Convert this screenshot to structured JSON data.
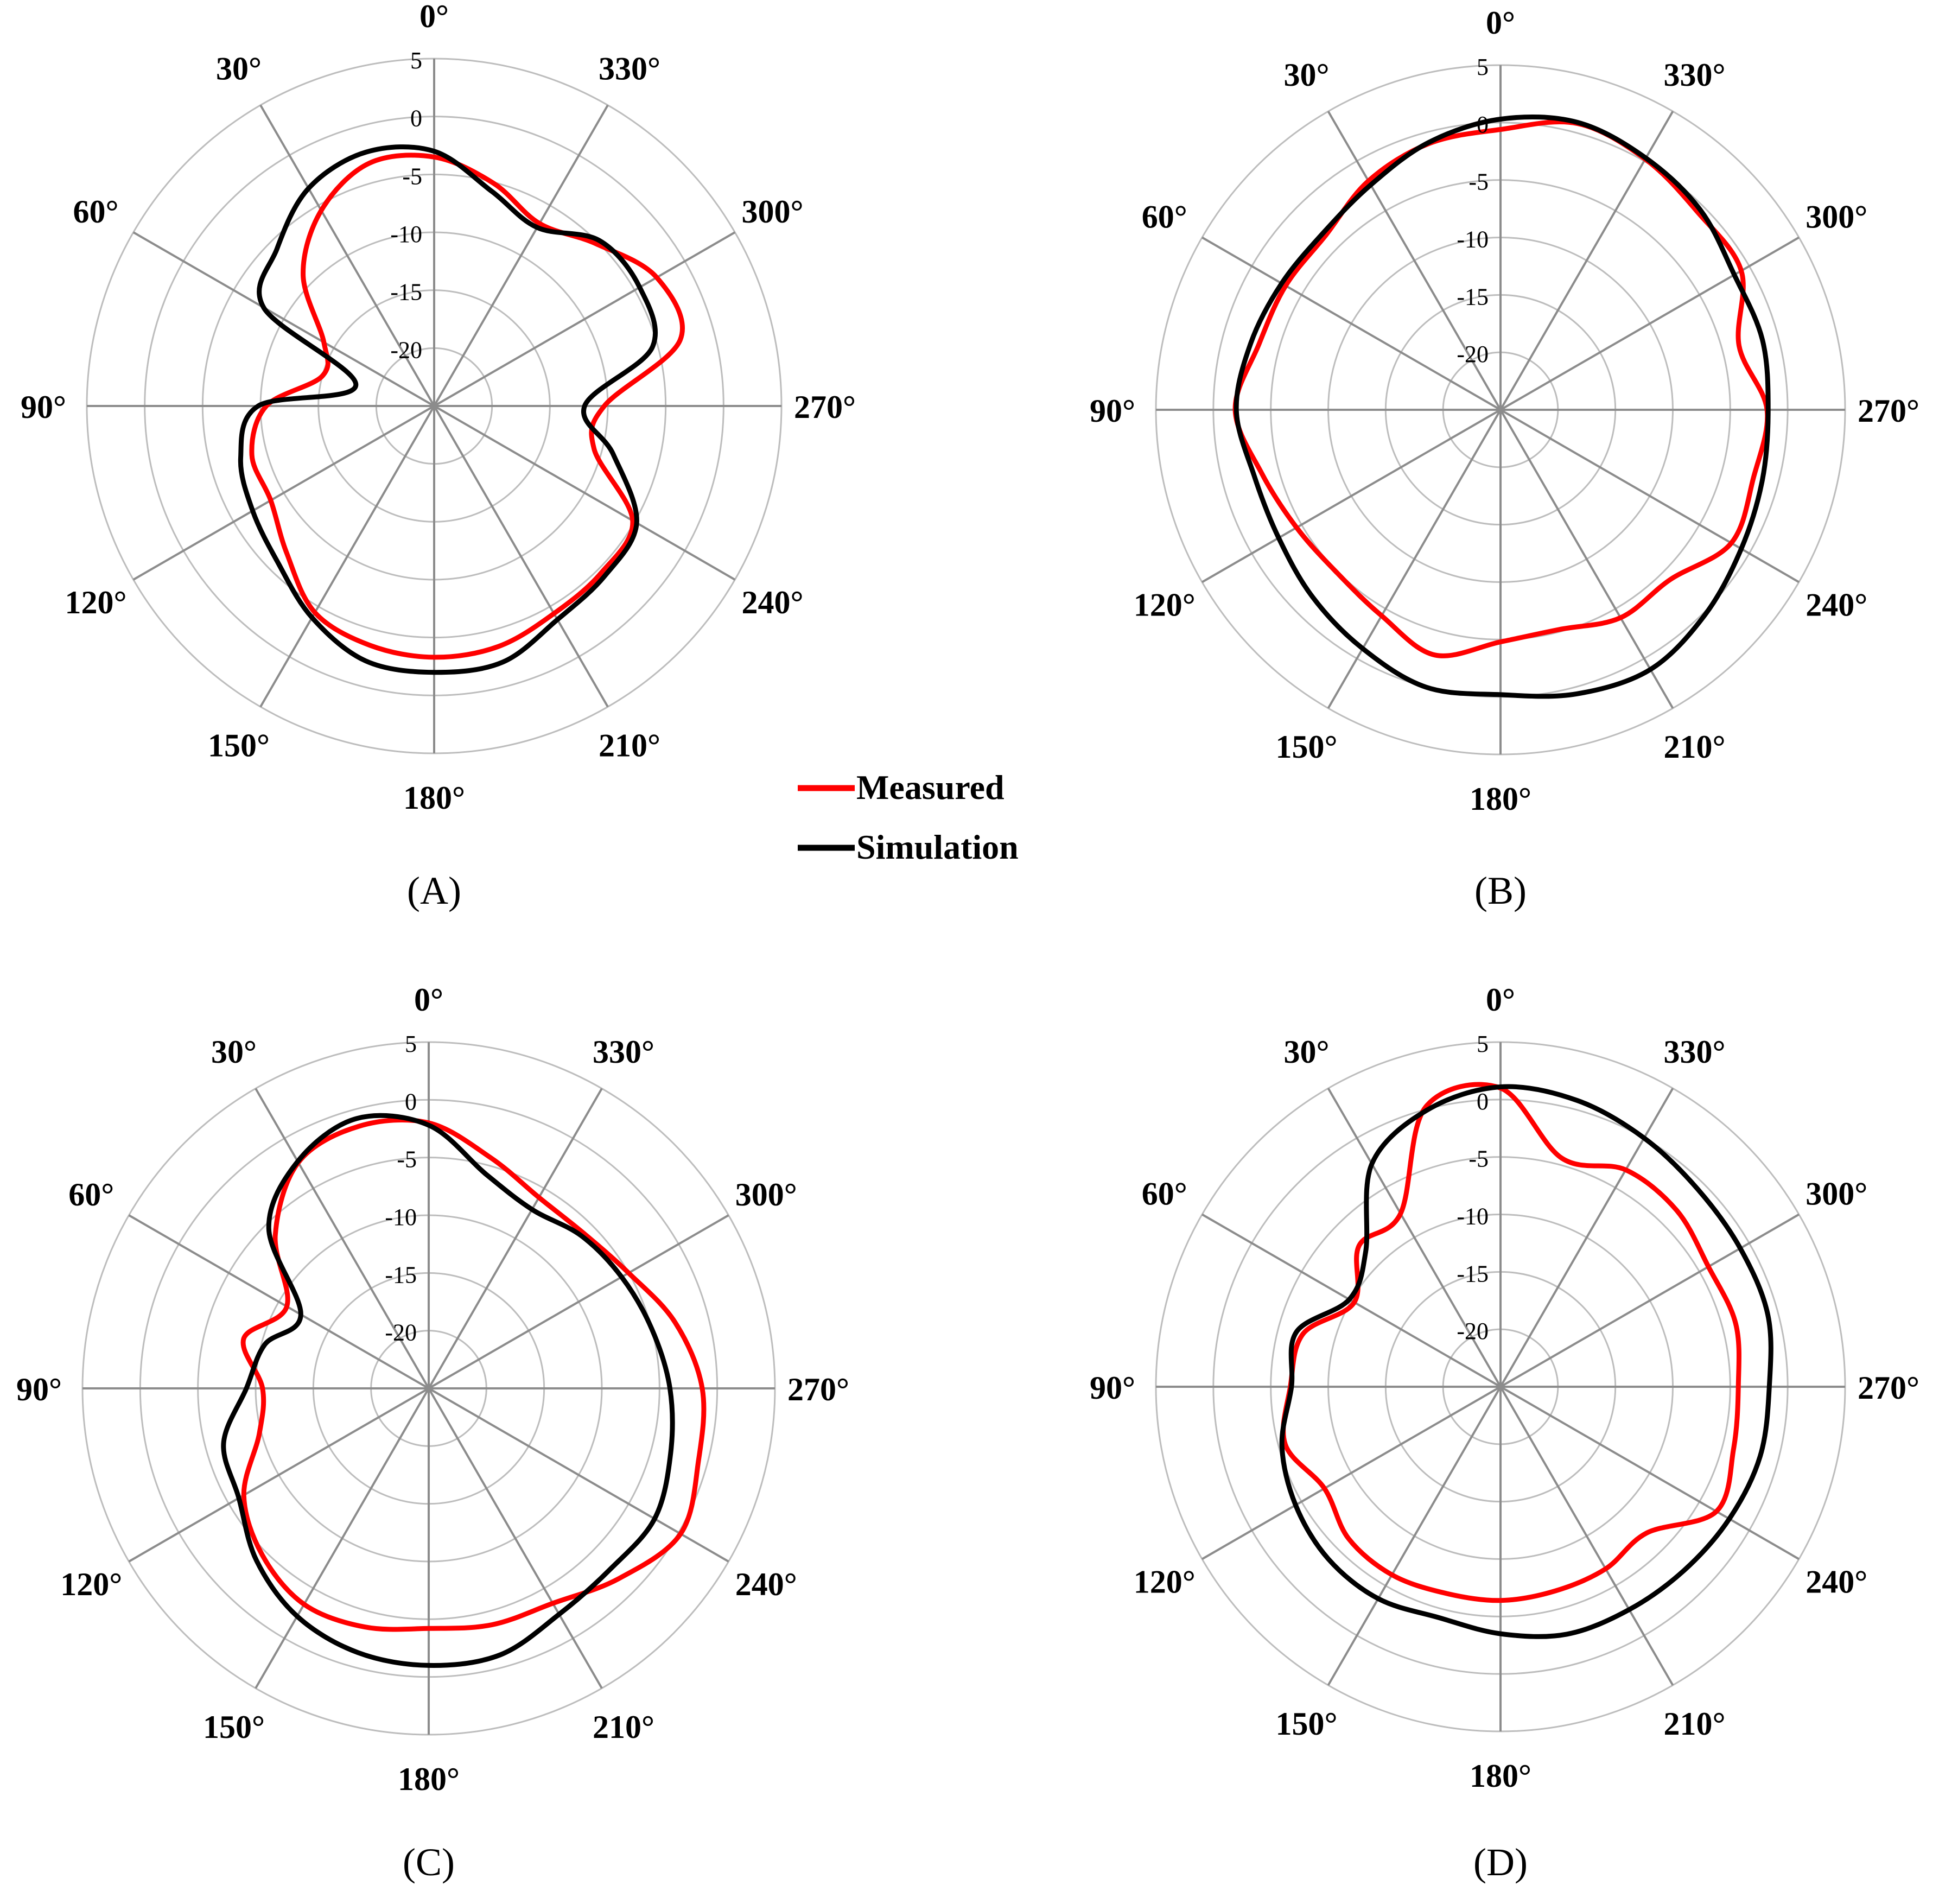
{
  "chart_data": [
    {
      "type": "polar-line",
      "panel": "(A)",
      "angle_labels": [
        "0°",
        "30°",
        "60°",
        "90°",
        "120°",
        "150°",
        "180°",
        "210°",
        "240°",
        "270°",
        "300°",
        "330°"
      ],
      "radial_ticks": [
        "5",
        "0",
        "-5",
        "-10",
        "-15",
        "-20"
      ],
      "rlim": [
        -25,
        5
      ],
      "angles_deg": [
        0,
        15,
        30,
        45,
        60,
        75,
        90,
        105,
        120,
        135,
        150,
        165,
        180,
        195,
        210,
        225,
        240,
        255,
        270,
        285,
        300,
        315,
        330,
        345
      ],
      "series": [
        {
          "name": "Measured",
          "color": "#ff0000",
          "values": [
            -3.5,
            -3.3,
            -5.5,
            -9,
            -14,
            -15,
            -10.5,
            -8.7,
            -8.7,
            -7,
            -4.4,
            -3.6,
            -3.3,
            -3.5,
            -4.3,
            -4.6,
            -5.2,
            -10.7,
            -10.3,
            -3,
            -2.8,
            -5.2,
            -6.8,
            -5.1
          ]
        },
        {
          "name": "Simulation",
          "color": "#000000",
          "values": [
            -3,
            -2.3,
            -3.3,
            -5.8,
            -8,
            -18,
            -9.8,
            -7.7,
            -6.9,
            -5.9,
            -3.9,
            -2.2,
            -2,
            -2.1,
            -3.7,
            -4.2,
            -4.8,
            -9,
            -12,
            -5.5,
            -4.5,
            -4.8,
            -7.2,
            -5.8
          ]
        }
      ]
    },
    {
      "type": "polar-line",
      "panel": "(B)",
      "angle_labels": [
        "0°",
        "30°",
        "60°",
        "90°",
        "120°",
        "150°",
        "180°",
        "210°",
        "240°",
        "270°",
        "300°",
        "330°"
      ],
      "radial_ticks": [
        "5",
        "0",
        "-5",
        "-10",
        "-15",
        "-20"
      ],
      "rlim": [
        -25,
        5
      ],
      "angles_deg": [
        0,
        15,
        30,
        45,
        60,
        75,
        90,
        105,
        120,
        135,
        150,
        165,
        180,
        195,
        210,
        225,
        240,
        255,
        270,
        285,
        300,
        315,
        330,
        345
      ],
      "series": [
        {
          "name": "Measured",
          "color": "#ff0000",
          "values": [
            -0.6,
            -1,
            -2,
            -3.5,
            -3.4,
            -3.2,
            -1.9,
            -3.5,
            -4.5,
            -4.9,
            -4.3,
            -2.9,
            -4.8,
            -5.2,
            -4.1,
            -4.1,
            -1.8,
            -2.2,
            -1.8,
            -3.5,
            -0.8,
            -0.7,
            0.2,
            0.8
          ]
        },
        {
          "name": "Simulation",
          "color": "#000000",
          "values": [
            0.3,
            -0.9,
            -2.4,
            -3.2,
            -3,
            -2.5,
            -2,
            -2.8,
            -2.7,
            -1.9,
            -1,
            0,
            -0.2,
            0.6,
            1.1,
            0.2,
            -0.8,
            -1.4,
            -1.7,
            -1.4,
            -1.5,
            -0.4,
            0.3,
            0.9
          ]
        }
      ]
    },
    {
      "type": "polar-line",
      "panel": "(C)",
      "angle_labels": [
        "0°",
        "30°",
        "60°",
        "90°",
        "120°",
        "150°",
        "180°",
        "210°",
        "240°",
        "270°",
        "300°",
        "330°"
      ],
      "radial_ticks": [
        "5",
        "0",
        "-5",
        "-10",
        "-15",
        "-20"
      ],
      "rlim": [
        -25,
        5
      ],
      "angles_deg": [
        0,
        15,
        30,
        45,
        60,
        75,
        90,
        105,
        120,
        135,
        150,
        165,
        180,
        195,
        210,
        225,
        240,
        255,
        270,
        285,
        300,
        315,
        330,
        345
      ],
      "series": [
        {
          "name": "Measured",
          "color": "#ff0000",
          "values": [
            -2,
            -1.5,
            -2.4,
            -6.2,
            -10.8,
            -8.4,
            -10.6,
            -9.8,
            -6.5,
            -4.6,
            -3.4,
            -3.6,
            -4.2,
            -3.8,
            -3.5,
            -1.7,
            0.2,
            -0.8,
            -1.3,
            -2.9,
            -5,
            -6,
            -5.9,
            -4.3
          ]
        },
        {
          "name": "Simulation",
          "color": "#000000",
          "values": [
            -2.2,
            -0.8,
            -2.3,
            -5.4,
            -12.2,
            -10.3,
            -9.2,
            -6.6,
            -6,
            -3.9,
            -2.2,
            -1.3,
            -1,
            -1.1,
            -2.4,
            -2.8,
            -2.4,
            -3.3,
            -4.1,
            -5,
            -5.7,
            -6.3,
            -7.1,
            -5.8
          ]
        }
      ]
    },
    {
      "type": "polar-line",
      "panel": "(D)",
      "angle_labels": [
        "0°",
        "30°",
        "60°",
        "90°",
        "120°",
        "150°",
        "180°",
        "210°",
        "240°",
        "270°",
        "300°",
        "330°"
      ],
      "radial_ticks": [
        "5",
        "0",
        "-5",
        "-10",
        "-15",
        "-20"
      ],
      "rlim": [
        -25,
        5
      ],
      "angles_deg": [
        0,
        15,
        30,
        45,
        60,
        75,
        90,
        105,
        120,
        135,
        150,
        165,
        180,
        195,
        210,
        225,
        240,
        255,
        270,
        285,
        300,
        315,
        330,
        345
      ],
      "series": [
        {
          "name": "Measured",
          "color": "#ff0000",
          "values": [
            1,
            0.2,
            -7.6,
            -7.6,
            -10.3,
            -7.2,
            -6.7,
            -5.6,
            -7.3,
            -6.3,
            -6.1,
            -6.4,
            -6.4,
            -6.6,
            -6.7,
            -7,
            -3.3,
            -4,
            -4.3,
            -3.8,
            -4.1,
            -3.3,
            -3.2,
            -4.4
          ]
        },
        {
          "name": "Simulation",
          "color": "#000000",
          "values": [
            1.1,
            -0.1,
            -2.6,
            -8.4,
            -9.8,
            -6.6,
            -6.8,
            -5.3,
            -4.4,
            -3.8,
            -3.7,
            -4.2,
            -3.5,
            -2.7,
            -2.6,
            -2.4,
            -2,
            -1.6,
            -1.6,
            -0.9,
            -0.9,
            -0.7,
            0,
            0.8
          ]
        }
      ]
    }
  ],
  "legend": {
    "items": [
      {
        "label": "Measured",
        "color": "#ff0000"
      },
      {
        "label": "Simulation",
        "color": "#000000"
      }
    ]
  }
}
